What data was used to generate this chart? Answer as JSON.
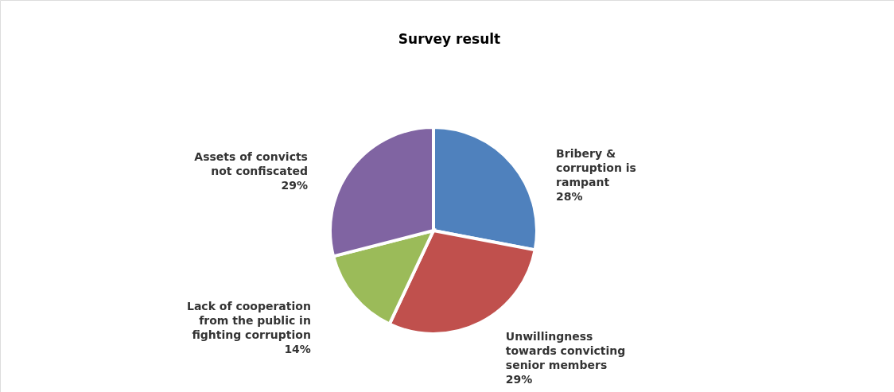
{
  "chart_data": {
    "type": "pie",
    "title": "Survey result",
    "categories": [
      "Bribery & corruption is rampant",
      "Unwillingness towards convicting senior members",
      "Lack of cooperation from the public in fighting corruption",
      "Assets of convicts not confiscated"
    ],
    "values": [
      28,
      29,
      14,
      29
    ],
    "colors": [
      "#4f81bd",
      "#c0504d",
      "#9bbb59",
      "#8064a2"
    ],
    "value_labels": [
      "28%",
      "29%",
      "14%",
      "29%"
    ]
  }
}
